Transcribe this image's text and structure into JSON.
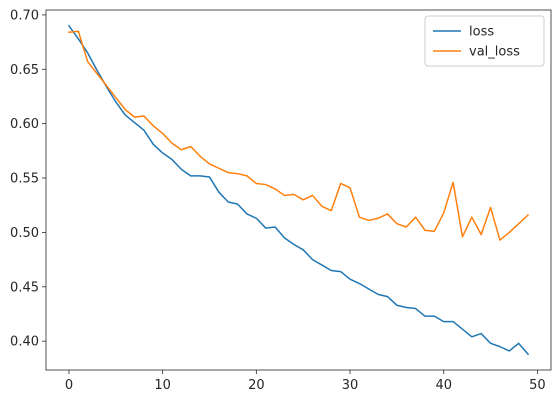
{
  "chart_data": {
    "type": "line",
    "title": "",
    "xlabel": "",
    "ylabel": "",
    "xlim": [
      -2.45,
      51.45
    ],
    "ylim": [
      0.3735,
      0.7045
    ],
    "xticks": [
      0,
      10,
      20,
      30,
      40,
      50
    ],
    "yticks": [
      0.4,
      0.45,
      0.5,
      0.55,
      0.6,
      0.65,
      0.7
    ],
    "ytick_labels": [
      "0.40",
      "0.45",
      "0.50",
      "0.55",
      "0.60",
      "0.65",
      "0.70"
    ],
    "grid": false,
    "legend_position": "top-right",
    "series": [
      {
        "name": "loss",
        "color": "#1f77b4",
        "x": [
          0,
          1,
          2,
          3,
          4,
          5,
          6,
          7,
          8,
          9,
          10,
          11,
          12,
          13,
          14,
          15,
          16,
          17,
          18,
          19,
          20,
          21,
          22,
          23,
          24,
          25,
          26,
          27,
          28,
          29,
          30,
          31,
          32,
          33,
          34,
          35,
          36,
          37,
          38,
          39,
          40,
          41,
          42,
          43,
          44,
          45,
          46,
          47,
          48,
          49
        ],
        "values": [
          0.69,
          0.678,
          0.665,
          0.649,
          0.634,
          0.62,
          0.608,
          0.601,
          0.594,
          0.581,
          0.573,
          0.567,
          0.558,
          0.552,
          0.552,
          0.551,
          0.537,
          0.528,
          0.526,
          0.517,
          0.513,
          0.504,
          0.505,
          0.495,
          0.489,
          0.484,
          0.475,
          0.47,
          0.465,
          0.464,
          0.457,
          0.453,
          0.448,
          0.443,
          0.441,
          0.433,
          0.431,
          0.43,
          0.423,
          0.423,
          0.418,
          0.418,
          0.411,
          0.404,
          0.407,
          0.398,
          0.395,
          0.391,
          0.398,
          0.388
        ]
      },
      {
        "name": "val_loss",
        "color": "#ff7f0e",
        "x": [
          0,
          1,
          2,
          3,
          4,
          5,
          6,
          7,
          8,
          9,
          10,
          11,
          12,
          13,
          14,
          15,
          16,
          17,
          18,
          19,
          20,
          21,
          22,
          23,
          24,
          25,
          26,
          27,
          28,
          29,
          30,
          31,
          32,
          33,
          34,
          35,
          36,
          37,
          38,
          39,
          40,
          41,
          42,
          43,
          44,
          45,
          46,
          47,
          48,
          49
        ],
        "values": [
          0.684,
          0.685,
          0.657,
          0.646,
          0.635,
          0.624,
          0.613,
          0.606,
          0.607,
          0.598,
          0.591,
          0.582,
          0.576,
          0.579,
          0.57,
          0.563,
          0.559,
          0.555,
          0.554,
          0.552,
          0.545,
          0.544,
          0.54,
          0.534,
          0.535,
          0.53,
          0.534,
          0.524,
          0.52,
          0.545,
          0.541,
          0.514,
          0.511,
          0.513,
          0.517,
          0.508,
          0.505,
          0.514,
          0.502,
          0.501,
          0.518,
          0.546,
          0.496,
          0.514,
          0.498,
          0.523,
          0.493,
          0.5,
          0.508,
          0.516
        ]
      }
    ]
  }
}
